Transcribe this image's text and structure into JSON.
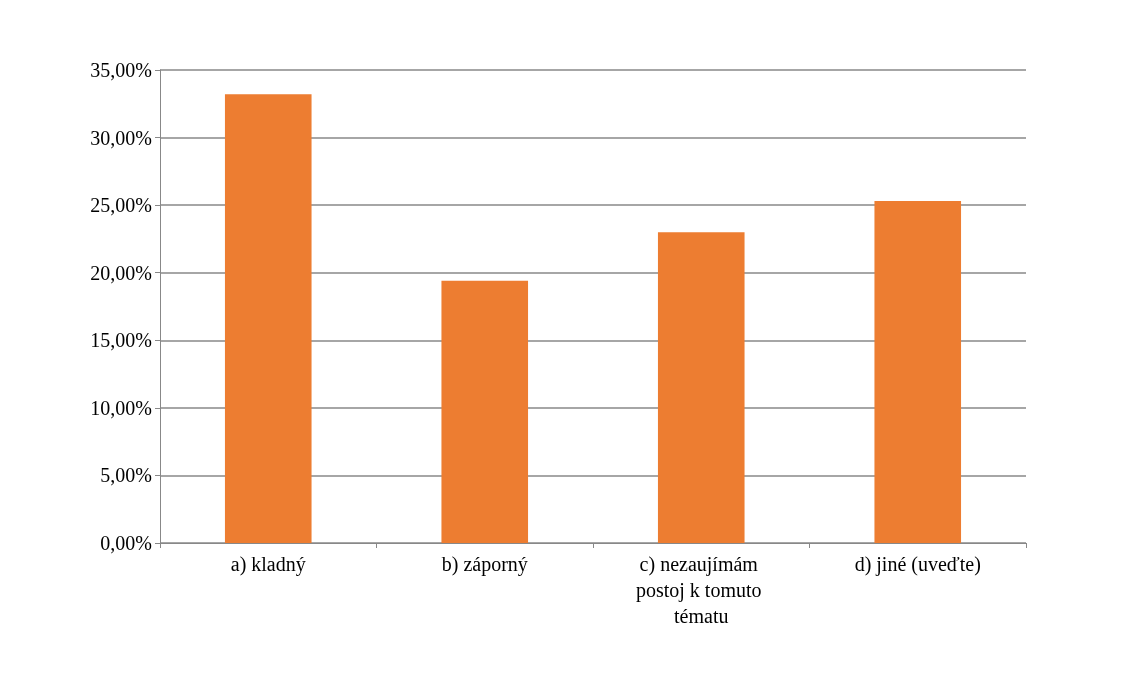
{
  "chart_data": {
    "type": "bar",
    "categories": [
      "a) kladný",
      "b) záporný",
      "c) nezaujímám postoj k tomuto tématu",
      "d) jiné (uveďte)"
    ],
    "values": [
      33.2,
      19.4,
      23.0,
      25.3
    ],
    "color": "#ed7d31",
    "ylim": [
      0,
      35
    ],
    "yticks": [
      {
        "value": 0,
        "label": "0,00%"
      },
      {
        "value": 5,
        "label": "5,00%"
      },
      {
        "value": 10,
        "label": "10,00%"
      },
      {
        "value": 15,
        "label": "15,00%"
      },
      {
        "value": 20,
        "label": "20,00%"
      },
      {
        "value": 25,
        "label": "25,00%"
      },
      {
        "value": 30,
        "label": "30,00%"
      },
      {
        "value": 35,
        "label": "35,00%"
      }
    ],
    "grid": "y"
  }
}
